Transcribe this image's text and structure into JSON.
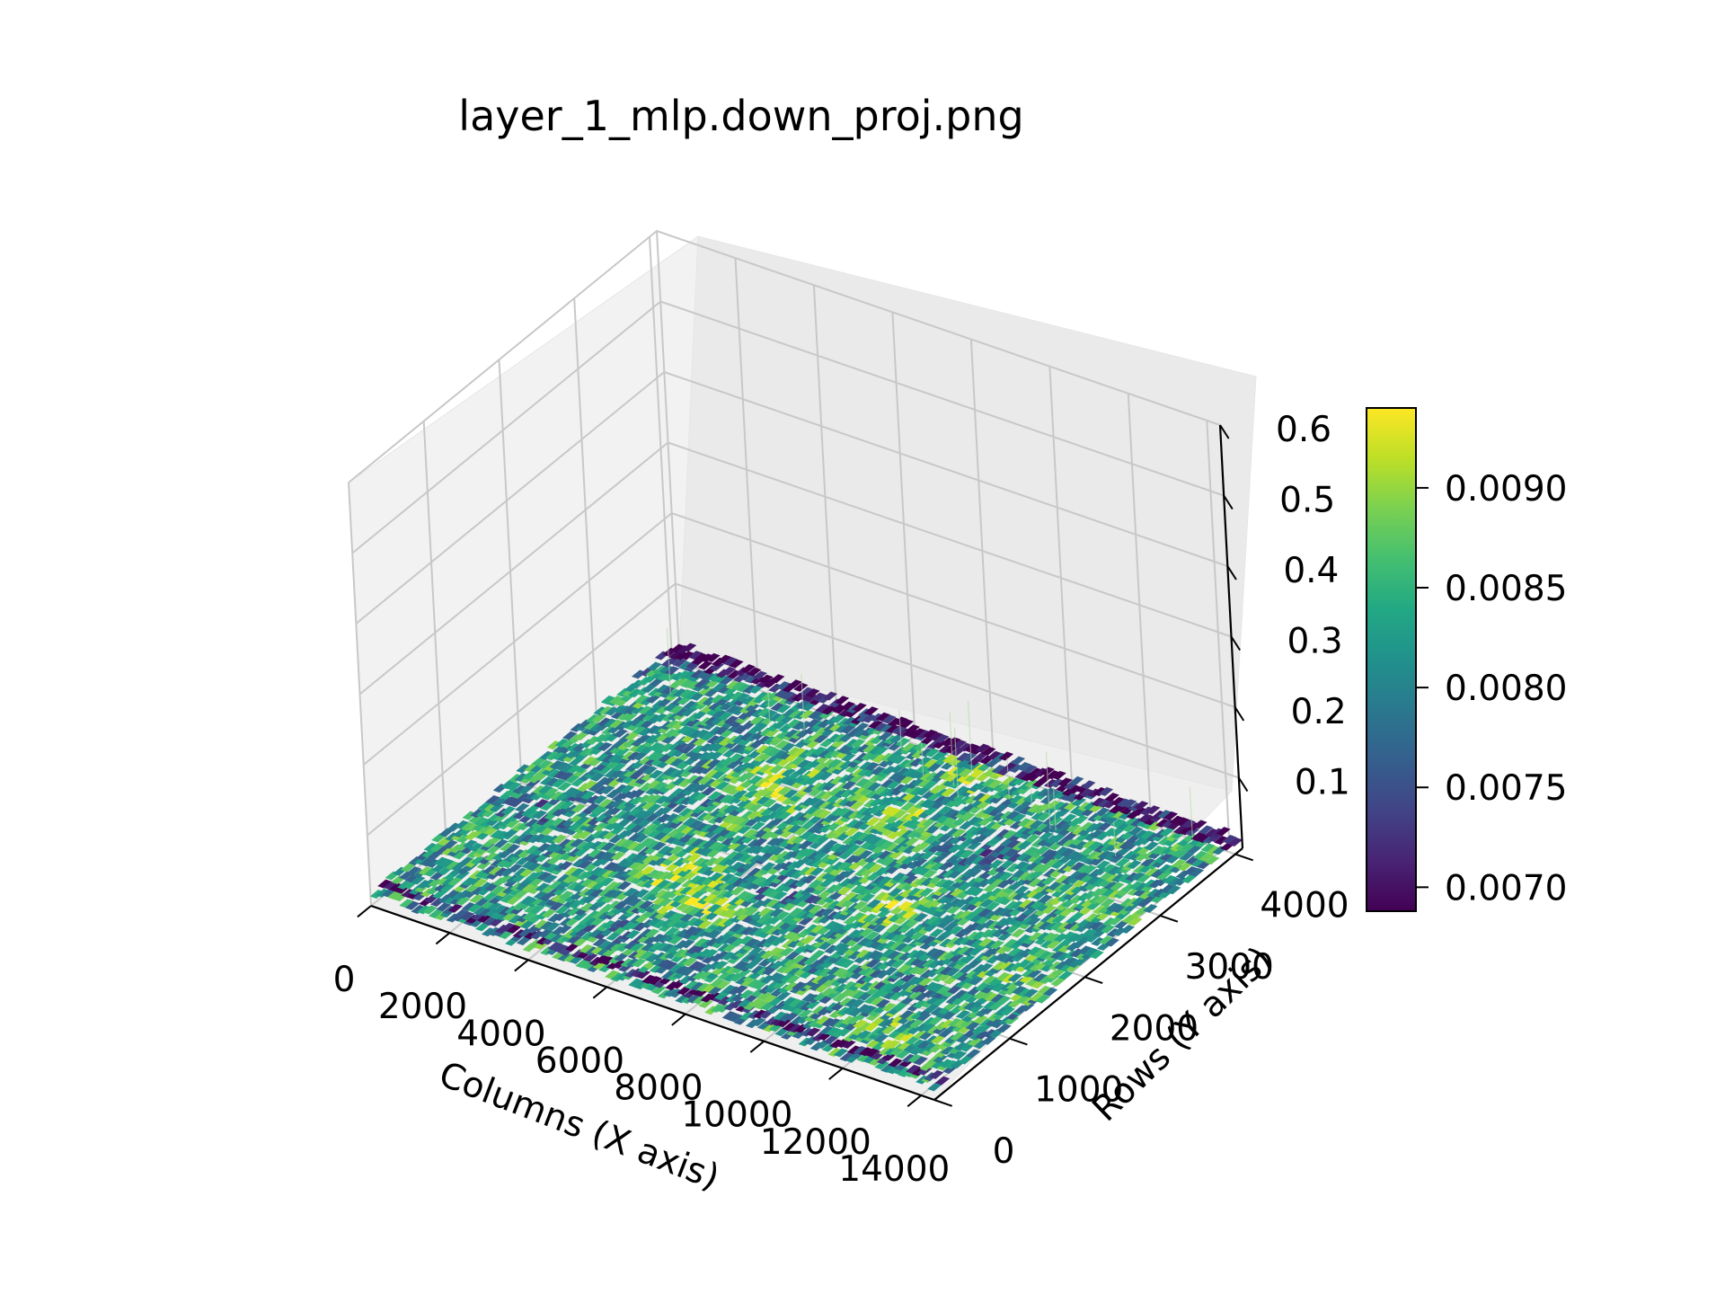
{
  "chart_data": {
    "type": "surface3d",
    "title": "layer_1_mlp.down_proj.png",
    "xlabel": "Columns (X axis)",
    "ylabel": "Rows (Y axis)",
    "zlabel": "",
    "xlim": [
      0,
      14336
    ],
    "ylim": [
      0,
      4096
    ],
    "zlim": [
      0.0,
      0.6
    ],
    "x_ticks": [
      "0",
      "2000",
      "4000",
      "6000",
      "8000",
      "10000",
      "12000",
      "14000"
    ],
    "y_ticks": [
      "0",
      "1000",
      "2000",
      "3000",
      "4000"
    ],
    "z_ticks": [
      "0.1",
      "0.2",
      "0.3",
      "0.4",
      "0.5",
      "0.6"
    ],
    "surface": {
      "description_values": "heatmap of mean values, mostly between 0.0070 and 0.0093",
      "value_min": 0.00688,
      "value_max": 0.0094,
      "low_bands_rows": [
        4000,
        150
      ],
      "colormap": "viridis"
    },
    "colorbar": {
      "ticks": [
        "0.0070",
        "0.0075",
        "0.0080",
        "0.0085",
        "0.0090"
      ],
      "tick_values": [
        0.007,
        0.0075,
        0.008,
        0.0085,
        0.009
      ],
      "min": 0.00688,
      "max": 0.0094,
      "colormap": "viridis"
    },
    "grid": true
  }
}
